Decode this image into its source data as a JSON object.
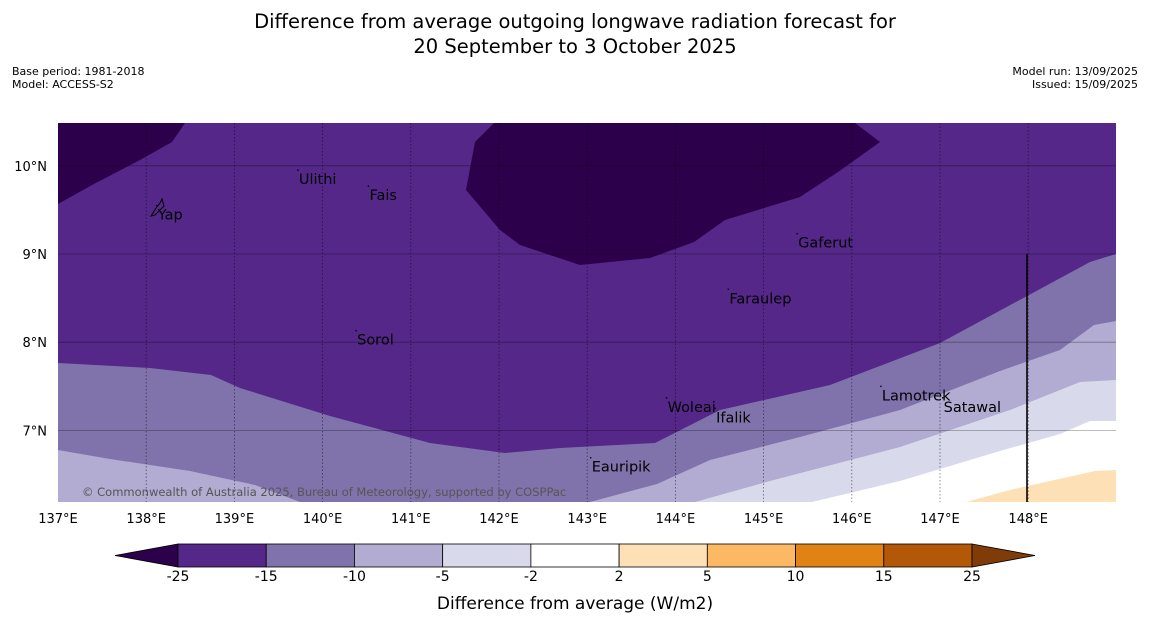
{
  "title": {
    "line1": "Difference from average outgoing longwave radiation forecast for",
    "line2": "20 September to 3 October 2025"
  },
  "meta_left": {
    "base_period": "Base period: 1981-2018",
    "model": "Model: ACCESS-S2"
  },
  "meta_right": {
    "model_run": "Model run: 13/09/2025",
    "issued": "Issued: 15/09/2025"
  },
  "map": {
    "lon_range": [
      137.0,
      149.0
    ],
    "lat_range": [
      6.2,
      10.5
    ],
    "lon_ticks": [
      137,
      138,
      139,
      140,
      141,
      142,
      143,
      144,
      145,
      146,
      147,
      148
    ],
    "lon_tick_labels": [
      "137°E",
      "138°E",
      "139°E",
      "140°E",
      "141°E",
      "142°E",
      "143°E",
      "144°E",
      "145°E",
      "146°E",
      "147°E",
      "148°E"
    ],
    "lat_ticks": [
      7,
      8,
      9,
      10
    ],
    "lat_tick_labels": [
      "7°N",
      "8°N",
      "9°N",
      "10°N"
    ],
    "places": [
      {
        "name": "Ulithi",
        "lon": 139.72,
        "lat": 9.95
      },
      {
        "name": "Yap",
        "lon": 138.12,
        "lat": 9.55
      },
      {
        "name": "Fais",
        "lon": 140.52,
        "lat": 9.77
      },
      {
        "name": "Gaferut",
        "lon": 145.38,
        "lat": 9.23
      },
      {
        "name": "Faraulep",
        "lon": 144.6,
        "lat": 8.6
      },
      {
        "name": "Sorol",
        "lon": 140.38,
        "lat": 8.13
      },
      {
        "name": "Woleai",
        "lon": 143.9,
        "lat": 7.37
      },
      {
        "name": "Ifalik",
        "lon": 144.45,
        "lat": 7.25
      },
      {
        "name": "Lamotrek",
        "lon": 146.33,
        "lat": 7.5
      },
      {
        "name": "Satawal",
        "lon": 147.03,
        "lat": 7.37
      },
      {
        "name": "Eauripik",
        "lon": 143.04,
        "lat": 6.69
      }
    ],
    "copyright": "© Commonwealth of Australia 2025, Bureau of Meteorology, supported by COSPPac"
  },
  "colorbar": {
    "label": "Difference from average (W/m2)",
    "ticks": [
      "-25",
      "-15",
      "-10",
      "-5",
      "-2",
      "2",
      "5",
      "10",
      "15",
      "25"
    ],
    "colors": [
      "#2d004b",
      "#542788",
      "#8073ac",
      "#b2abd2",
      "#d8daeb",
      "#ffffff",
      "#fee0b6",
      "#fdb863",
      "#e08214",
      "#b35806",
      "#7f3b08"
    ]
  }
}
